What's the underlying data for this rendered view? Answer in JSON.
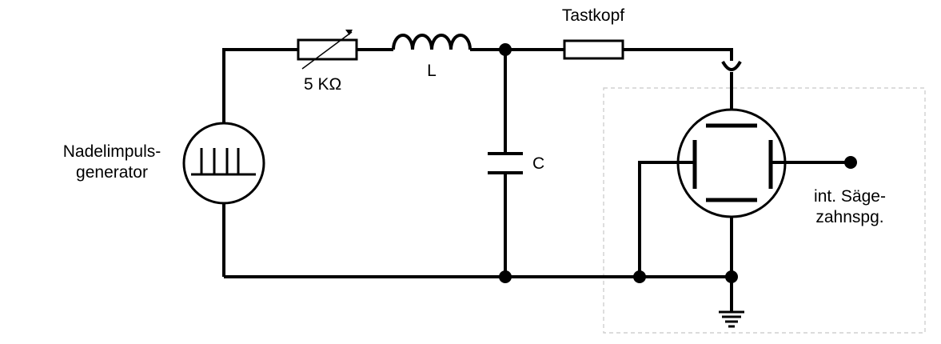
{
  "labels": {
    "generator_line1": "Nadelimpuls-",
    "generator_line2": "generator",
    "resistor": "5 KΩ",
    "inductor": "L",
    "capacitor": "C",
    "probe": "Tastkopf",
    "sawtooth_line1": "int. Säge-",
    "sawtooth_line2": "zahnspg."
  }
}
